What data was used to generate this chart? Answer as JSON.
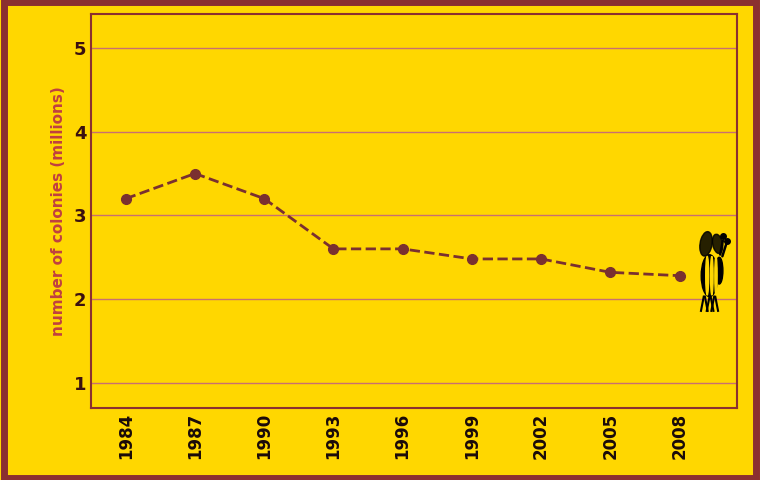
{
  "years": [
    1984,
    1987,
    1990,
    1993,
    1996,
    1999,
    2002,
    2005,
    2008
  ],
  "colonies": [
    3.2,
    3.5,
    3.2,
    2.6,
    2.6,
    2.48,
    2.48,
    2.32,
    2.28
  ],
  "line_color": "#7a3030",
  "marker_color": "#7a3030",
  "background_color": "#FFD700",
  "border_color": "#8B3030",
  "grid_color": "#c87070",
  "tick_color": "#3a1010",
  "ylabel": "number of colonies (millions)",
  "ylabel_color": "#c04040",
  "yticks": [
    1,
    2,
    3,
    4,
    5
  ],
  "ylim": [
    0.7,
    5.4
  ],
  "xlim": [
    1982.5,
    2010.5
  ],
  "xtick_labels": [
    "1984",
    "1987",
    "1990",
    "1993",
    "1996",
    "1999",
    "2002",
    "2005",
    "2008"
  ]
}
